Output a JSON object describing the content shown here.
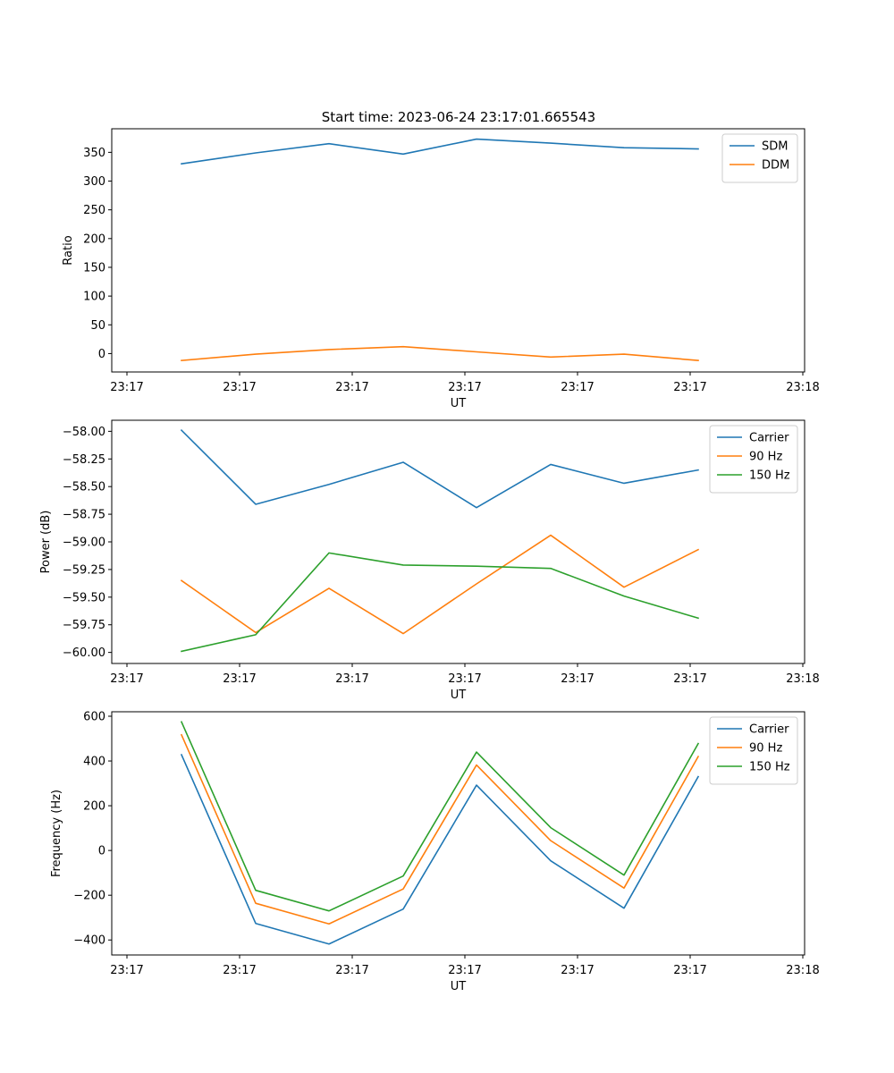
{
  "title": "Start time: 2023-06-24 23:17:01.665543",
  "x_tick_labels": [
    "23:17",
    "23:17",
    "23:17",
    "23:17",
    "23:17",
    "23:17",
    "23:18"
  ],
  "chart_data": [
    {
      "type": "line",
      "xlabel": "UT",
      "ylabel": "Ratio",
      "ylim": [
        -32,
        391
      ],
      "yticks": [
        0,
        50,
        100,
        150,
        200,
        250,
        300,
        350
      ],
      "ytick_labels": [
        "0",
        "50",
        "100",
        "150",
        "200",
        "250",
        "300",
        "350"
      ],
      "legend": "top-right",
      "grid": false,
      "x_points": 8,
      "series": [
        {
          "name": "SDM",
          "color": "#1f77b4",
          "values": [
            330,
            349,
            365,
            347,
            373,
            366,
            358,
            356
          ]
        },
        {
          "name": "DDM",
          "color": "#ff7f0e",
          "values": [
            -12,
            -1,
            7,
            12,
            3,
            -6,
            -1,
            -12
          ]
        }
      ]
    },
    {
      "type": "line",
      "xlabel": "UT",
      "ylabel": "Power (dB)",
      "ylim": [
        -60.1,
        -57.9
      ],
      "yticks": [
        -60.0,
        -59.75,
        -59.5,
        -59.25,
        -59.0,
        -58.75,
        -58.5,
        -58.25,
        -58.0
      ],
      "ytick_labels": [
        "−60.00",
        "−59.75",
        "−59.50",
        "−59.25",
        "−59.00",
        "−58.75",
        "−58.50",
        "−58.25",
        "−58.00"
      ],
      "legend": "top-right",
      "grid": false,
      "x_points": 8,
      "series": [
        {
          "name": "Carrier",
          "color": "#1f77b4",
          "values": [
            -57.99,
            -58.66,
            -58.48,
            -58.28,
            -58.69,
            -58.3,
            -58.47,
            -58.35
          ]
        },
        {
          "name": "90 Hz",
          "color": "#ff7f0e",
          "values": [
            -59.35,
            -59.82,
            -59.42,
            -59.83,
            -59.38,
            -58.94,
            -59.41,
            -59.07
          ]
        },
        {
          "name": "150 Hz",
          "color": "#2ca02c",
          "values": [
            -59.99,
            -59.84,
            -59.1,
            -59.21,
            -59.22,
            -59.24,
            -59.49,
            -59.69
          ]
        }
      ]
    },
    {
      "type": "line",
      "xlabel": "UT",
      "ylabel": "Frequency (Hz)",
      "ylim": [
        -467,
        620
      ],
      "yticks": [
        -400,
        -200,
        0,
        200,
        400,
        600
      ],
      "ytick_labels": [
        "−400",
        "−200",
        "0",
        "200",
        "400",
        "600"
      ],
      "legend": "top-right",
      "grid": false,
      "x_points": 8,
      "series": [
        {
          "name": "Carrier",
          "color": "#1f77b4",
          "values": [
            428,
            -326,
            -418,
            -262,
            292,
            -46,
            -258,
            330
          ]
        },
        {
          "name": "90 Hz",
          "color": "#ff7f0e",
          "values": [
            517,
            -236,
            -328,
            -172,
            382,
            44,
            -168,
            420
          ]
        },
        {
          "name": "150 Hz",
          "color": "#2ca02c",
          "values": [
            575,
            -178,
            -270,
            -114,
            440,
            102,
            -110,
            478
          ]
        }
      ]
    }
  ]
}
